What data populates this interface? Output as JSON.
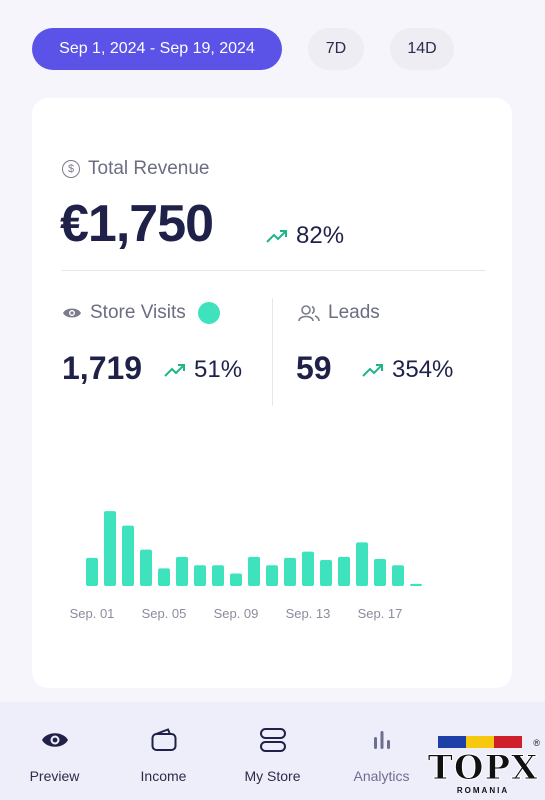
{
  "filters": {
    "date_range": "Sep 1, 2024 - Sep 19, 2024",
    "option_7d": "7D",
    "option_14d": "14D"
  },
  "revenue": {
    "label": "Total Revenue",
    "value": "€1,750",
    "change": "82%"
  },
  "visits": {
    "label": "Store Visits",
    "value": "1,719",
    "change": "51%"
  },
  "leads": {
    "label": "Leads",
    "value": "59",
    "change": "354%"
  },
  "chart_data": {
    "type": "bar",
    "categories": [
      "Sep. 01",
      "Sep. 02",
      "Sep. 03",
      "Sep. 04",
      "Sep. 05",
      "Sep. 06",
      "Sep. 07",
      "Sep. 08",
      "Sep. 09",
      "Sep. 10",
      "Sep. 11",
      "Sep. 12",
      "Sep. 13",
      "Sep. 14",
      "Sep. 15",
      "Sep. 16",
      "Sep. 17",
      "Sep. 18",
      "Sep. 19"
    ],
    "tick_labels": [
      "Sep. 01",
      "Sep. 05",
      "Sep. 09",
      "Sep. 13",
      "Sep. 17"
    ],
    "values": [
      27,
      72,
      58,
      35,
      17,
      28,
      20,
      20,
      12,
      28,
      20,
      27,
      33,
      25,
      28,
      42,
      26,
      20,
      2
    ],
    "title": "",
    "xlabel": "",
    "ylabel": "",
    "ylim": [
      0,
      75
    ],
    "grid": false,
    "color": "#3ee3bd"
  },
  "nav": {
    "items": [
      {
        "label": "Preview",
        "icon": "eye-icon"
      },
      {
        "label": "Income",
        "icon": "wallet-icon"
      },
      {
        "label": "My Store",
        "icon": "store-icon"
      },
      {
        "label": "Analytics",
        "icon": "bar-chart-icon"
      }
    ]
  },
  "colors": {
    "accent": "#5b52e8",
    "positive": "#3ee3bd",
    "trend": "#1fb58a"
  },
  "watermark": {
    "text": "TOPX",
    "subtext": "ROMANIA",
    "registered": "®"
  }
}
